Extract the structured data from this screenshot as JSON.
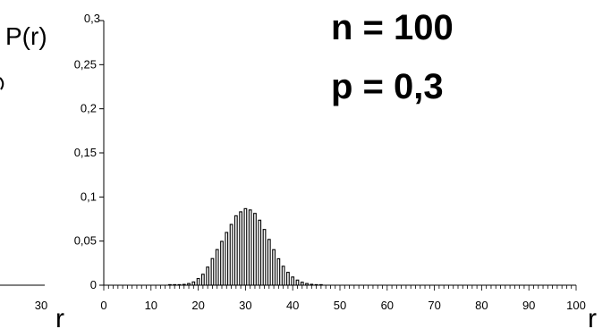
{
  "chart_data": {
    "type": "bar",
    "title": "",
    "params": {
      "n_label": "n = 100",
      "p_label": "p = 0,3"
    },
    "ylabel": "P(r)",
    "xlabel": "r",
    "left_partial_xlabel": "r",
    "left_partial_tick": "30",
    "xlim": [
      0,
      100
    ],
    "ylim": [
      0,
      0.3
    ],
    "x_ticks": [
      0,
      10,
      20,
      30,
      40,
      50,
      60,
      70,
      80,
      90,
      100
    ],
    "x_tick_labels": [
      "0",
      "10",
      "20",
      "30",
      "40",
      "50",
      "60",
      "70",
      "80",
      "90",
      "100"
    ],
    "y_ticks": [
      0,
      0.05,
      0.1,
      0.15,
      0.2,
      0.25,
      0.3
    ],
    "y_tick_labels": [
      "0",
      "0,05",
      "0,1",
      "0,15",
      "0,2",
      "0,25",
      "0,3"
    ],
    "bar_color": "#000000",
    "bar_fill_color": "#ffffff",
    "x": [
      14,
      15,
      16,
      17,
      18,
      19,
      20,
      21,
      22,
      23,
      24,
      25,
      26,
      27,
      28,
      29,
      30,
      31,
      32,
      33,
      34,
      35,
      36,
      37,
      38,
      39,
      40,
      41,
      42,
      43,
      44,
      45,
      46
    ],
    "values": [
      0.0001,
      0.0002,
      0.0004,
      0.0009,
      0.0019,
      0.0037,
      0.0076,
      0.0124,
      0.0205,
      0.0302,
      0.0404,
      0.0497,
      0.0598,
      0.0689,
      0.0787,
      0.0832,
      0.0868,
      0.0853,
      0.0814,
      0.0737,
      0.0632,
      0.0519,
      0.0403,
      0.03,
      0.0215,
      0.0146,
      0.0093,
      0.0058,
      0.0034,
      0.0019,
      0.001,
      0.0005,
      0.0002
    ]
  }
}
